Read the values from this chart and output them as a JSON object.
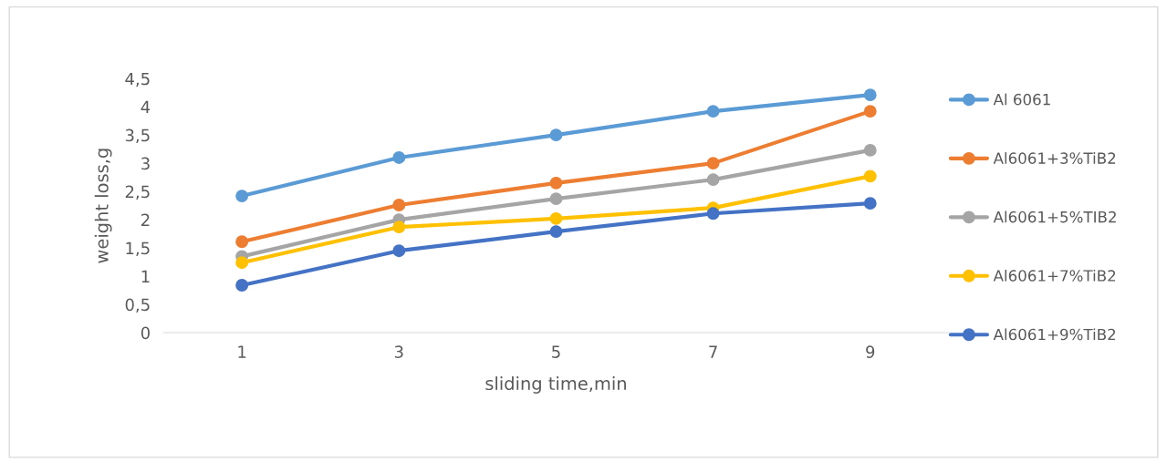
{
  "chart_data": {
    "type": "line",
    "xlabel": "sliding time,min",
    "ylabel": "weight loss,g",
    "categories": [
      "1",
      "3",
      "5",
      "7",
      "9"
    ],
    "series": [
      {
        "name": "Al 6061",
        "color": "#5b9bd5",
        "values": [
          2.42,
          3.1,
          3.5,
          3.92,
          4.21
        ]
      },
      {
        "name": "Al6061+3%TiB2",
        "color": "#ed7d31",
        "values": [
          1.61,
          2.26,
          2.65,
          3.0,
          3.92
        ]
      },
      {
        "name": "Al6061+5%TIB2",
        "color": "#a5a5a5",
        "values": [
          1.35,
          2.0,
          2.37,
          2.71,
          3.23
        ]
      },
      {
        "name": "Al6061+7%TiB2",
        "color": "#ffc000",
        "values": [
          1.24,
          1.87,
          2.02,
          2.21,
          2.77
        ]
      },
      {
        "name": "Al6061+9%TiB2",
        "color": "#4472c4",
        "values": [
          0.84,
          1.45,
          1.79,
          2.11,
          2.29
        ]
      }
    ],
    "ylim": [
      0,
      4.5
    ],
    "yticks": [
      0,
      {
        "value": 0.5,
        "label": "0,5"
      },
      1,
      {
        "value": 1.5,
        "label": "1,5"
      },
      2,
      {
        "value": 2.5,
        "label": "2,5"
      },
      3,
      {
        "value": 3.5,
        "label": "3,5"
      },
      4,
      {
        "value": 4.5,
        "label": "4,5"
      }
    ],
    "grid": false,
    "legend": "right",
    "marker": "circle",
    "line_style": "solid"
  }
}
